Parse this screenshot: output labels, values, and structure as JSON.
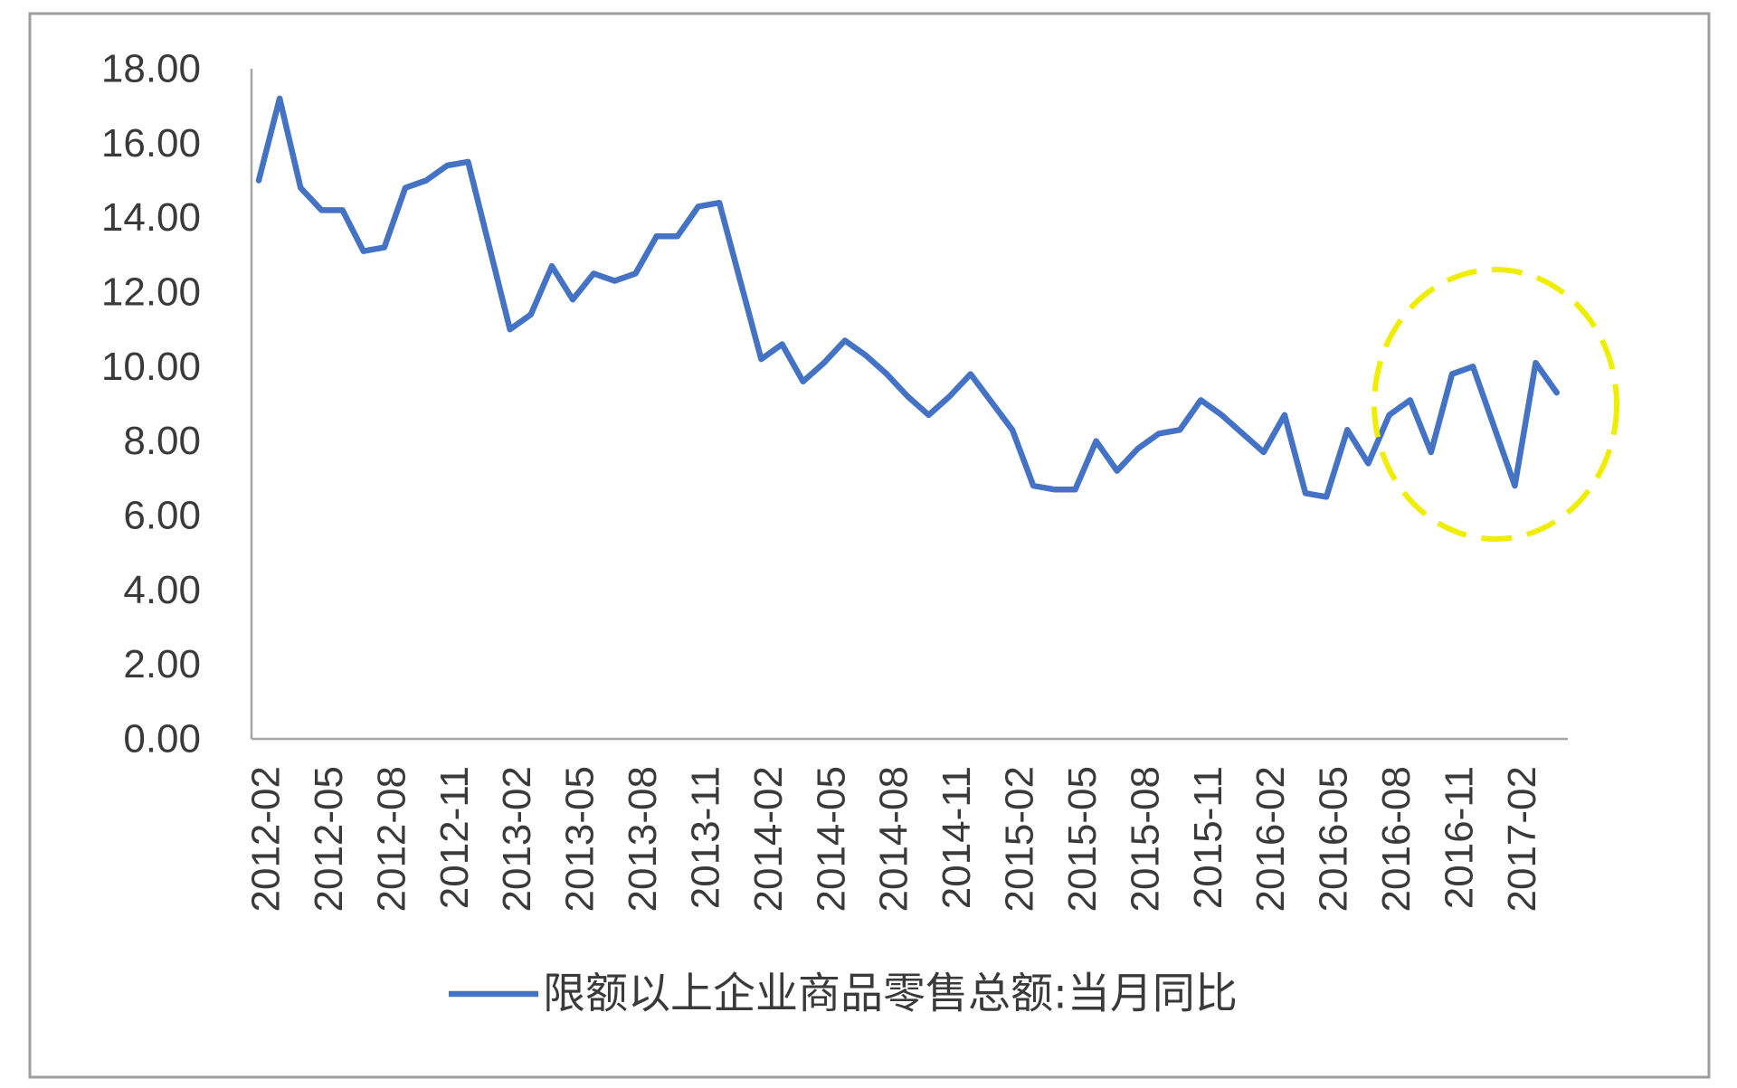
{
  "chart_data": {
    "type": "line",
    "legend": "bottom",
    "grid": false,
    "ylim": [
      0,
      18
    ],
    "y_ticks": [
      "0.00",
      "2.00",
      "4.00",
      "6.00",
      "8.00",
      "10.00",
      "12.00",
      "14.00",
      "16.00",
      "18.00"
    ],
    "x_tick_labels": [
      "2012-02",
      "2012-05",
      "2012-08",
      "2012-11",
      "2013-02",
      "2013-05",
      "2013-08",
      "2013-11",
      "2014-02",
      "2014-05",
      "2014-08",
      "2014-11",
      "2015-02",
      "2015-05",
      "2015-08",
      "2015-11",
      "2016-02",
      "2016-05",
      "2016-08",
      "2016-11",
      "2017-02"
    ],
    "x": [
      "2012-02",
      "2012-03",
      "2012-04",
      "2012-05",
      "2012-06",
      "2012-07",
      "2012-08",
      "2012-09",
      "2012-10",
      "2012-11",
      "2012-12",
      "2013-02",
      "2013-03",
      "2013-04",
      "2013-05",
      "2013-06",
      "2013-07",
      "2013-08",
      "2013-09",
      "2013-10",
      "2013-11",
      "2013-12",
      "2014-02",
      "2014-03",
      "2014-04",
      "2014-05",
      "2014-06",
      "2014-07",
      "2014-08",
      "2014-09",
      "2014-10",
      "2014-11",
      "2014-12",
      "2015-02",
      "2015-03",
      "2015-04",
      "2015-05",
      "2015-06",
      "2015-07",
      "2015-08",
      "2015-09",
      "2015-10",
      "2015-11",
      "2015-12",
      "2016-02",
      "2016-03",
      "2016-04",
      "2016-05",
      "2016-06",
      "2016-07",
      "2016-08",
      "2016-09",
      "2016-10",
      "2016-11",
      "2016-12",
      "2017-02",
      "2017-03",
      "2017-04"
    ],
    "series": [
      {
        "name": "限额以上企业商品零售总额:当月同比",
        "color": "#4472c4",
        "values": [
          15.0,
          17.2,
          14.8,
          14.2,
          14.2,
          13.1,
          13.2,
          14.8,
          15.0,
          15.4,
          15.5,
          11.0,
          11.4,
          12.7,
          11.8,
          12.5,
          12.3,
          12.5,
          13.5,
          13.5,
          14.3,
          14.4,
          10.2,
          10.6,
          9.6,
          10.1,
          10.7,
          10.3,
          9.8,
          9.2,
          8.7,
          9.2,
          9.8,
          8.3,
          6.8,
          6.7,
          6.7,
          8.0,
          7.2,
          7.8,
          8.2,
          8.3,
          9.1,
          8.7,
          7.7,
          8.7,
          6.6,
          6.5,
          8.3,
          7.4,
          8.7,
          9.1,
          7.7,
          9.8,
          10.0,
          6.8,
          10.1,
          9.3
        ]
      }
    ]
  },
  "annotation": {
    "highlight_color": "#f0ee00"
  }
}
